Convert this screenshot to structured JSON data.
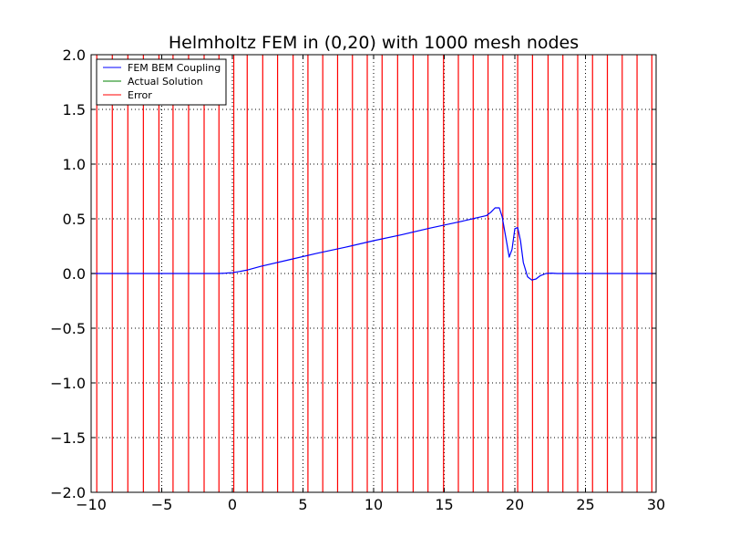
{
  "chart_data": {
    "type": "line",
    "title": "Helmholtz FEM in (0,20) with 1000 mesh nodes",
    "xlabel": "",
    "ylabel": "",
    "xlim": [
      -10,
      30
    ],
    "ylim": [
      -2.0,
      2.0
    ],
    "x_ticks": [
      "−10",
      "−5",
      "0",
      "5",
      "10",
      "15",
      "20",
      "25",
      "30"
    ],
    "y_ticks": [
      "2.0",
      "1.5",
      "1.0",
      "0.5",
      "0.0",
      "−0.5",
      "−1.0",
      "−1.5",
      "−2.0"
    ],
    "x_tick_values": [
      -10,
      -5,
      0,
      5,
      10,
      15,
      20,
      25,
      30
    ],
    "y_tick_values": [
      2.0,
      1.5,
      1.0,
      0.5,
      0.0,
      -0.5,
      -1.0,
      -1.5,
      -2.0
    ],
    "grid": true,
    "legend_position": "top-left",
    "series": [
      {
        "name": "FEM BEM Coupling",
        "color": "#0000ff",
        "x": [
          -10,
          -5,
          -1,
          -0.5,
          0,
          0.5,
          1,
          2,
          4,
          6,
          8,
          10,
          12,
          14,
          16,
          17,
          17.5,
          18,
          18.3,
          18.6,
          18.9,
          19.1,
          19.4,
          19.6,
          19.8,
          20.0,
          20.2,
          20.4,
          20.6,
          20.9,
          21.2,
          21.5,
          21.8,
          22.2,
          22.6,
          23.0,
          24,
          26,
          28,
          30
        ],
        "y": [
          0.0,
          0.0,
          0.0,
          0.003,
          0.008,
          0.018,
          0.03,
          0.065,
          0.125,
          0.185,
          0.24,
          0.3,
          0.355,
          0.415,
          0.47,
          0.5,
          0.515,
          0.53,
          0.56,
          0.6,
          0.6,
          0.52,
          0.3,
          0.15,
          0.22,
          0.41,
          0.42,
          0.3,
          0.1,
          -0.03,
          -0.06,
          -0.05,
          -0.02,
          0.0,
          0.003,
          0.0,
          0.0,
          0.0,
          0.0,
          0.0
        ]
      },
      {
        "name": "Actual Solution",
        "color": "#008000",
        "x": [],
        "y": []
      },
      {
        "name": "Error",
        "color": "#ff0000",
        "type": "vertical_lines",
        "x": [
          -9.6,
          -8.5,
          -7.4,
          -6.3,
          -5.2,
          -4.2,
          -3.1,
          -2.0,
          -0.95,
          0.1,
          1.05,
          2.15,
          3.2,
          4.3,
          5.35,
          6.4,
          7.45,
          8.5,
          9.55,
          10.6,
          11.7,
          12.8,
          13.85,
          14.95,
          16.0,
          17.05,
          18.1,
          19.15,
          20.2,
          21.25,
          22.35,
          23.4,
          24.45,
          25.5,
          26.55,
          27.6,
          28.65,
          29.7
        ]
      }
    ]
  }
}
